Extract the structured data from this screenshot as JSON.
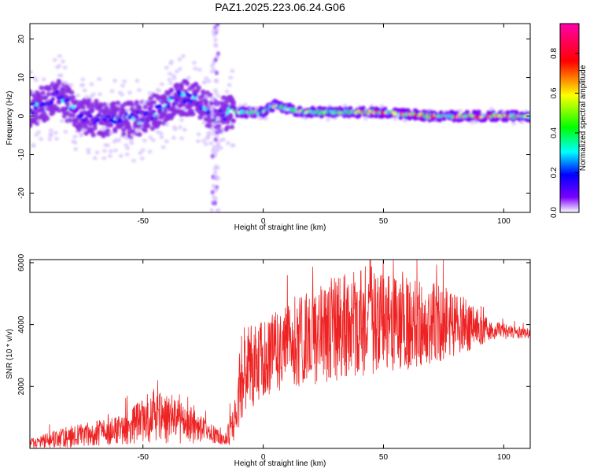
{
  "title": "PAZ1.2025.223.06.24.G06",
  "chart_data": [
    {
      "type": "heatmap",
      "xlabel": "Height of straight line (km)",
      "ylabel": "Frequency (Hz)",
      "xlim": [
        -97,
        111
      ],
      "ylim": [
        -25,
        24
      ],
      "xticks": [
        "-50",
        "0",
        "50",
        "100"
      ],
      "yticks": [
        "-20",
        "-10",
        "0",
        "10",
        "20"
      ],
      "ridge": [
        {
          "x": -95,
          "f": 2
        },
        {
          "x": -85,
          "f": 5
        },
        {
          "x": -75,
          "f": 0
        },
        {
          "x": -65,
          "f": -1
        },
        {
          "x": -55,
          "f": -1
        },
        {
          "x": -45,
          "f": 1
        },
        {
          "x": -35,
          "f": 5
        },
        {
          "x": -28,
          "f": 4
        },
        {
          "x": -20,
          "f": 0
        },
        {
          "x": -12,
          "f": 1
        },
        {
          "x": -5,
          "f": 1
        },
        {
          "x": 0,
          "f": 1
        },
        {
          "x": 5,
          "f": 3
        },
        {
          "x": 15,
          "f": 1
        },
        {
          "x": 30,
          "f": 1
        },
        {
          "x": 50,
          "f": 1
        },
        {
          "x": 70,
          "f": 0
        },
        {
          "x": 90,
          "f": 0
        },
        {
          "x": 111,
          "f": 0
        }
      ],
      "colorbar": {
        "label": "Normalized spectral amplitude",
        "range": [
          0,
          0.95
        ],
        "ticks": [
          "0.0",
          "0.2",
          "0.4",
          "0.6",
          "0.8"
        ],
        "colors": [
          "#ffffff",
          "#7b00ff",
          "#0000ff",
          "#00ffff",
          "#00ff00",
          "#ffff00",
          "#ff0000",
          "#ff00aa"
        ]
      }
    },
    {
      "type": "line",
      "xlabel": "Height of straight line (km)",
      "ylabel": "SNR (10 * v/v)",
      "xlim": [
        -97,
        111
      ],
      "ylim": [
        0,
        6100
      ],
      "xticks": [
        "-50",
        "0",
        "50",
        "100"
      ],
      "yticks": [
        "2000",
        "4000",
        "6000"
      ],
      "series": [
        {
          "color": "#ee2222",
          "envelope": [
            {
              "x": -97,
              "base": 100,
              "amp": 150
            },
            {
              "x": -80,
              "base": 250,
              "amp": 350
            },
            {
              "x": -60,
              "base": 400,
              "amp": 450
            },
            {
              "x": -45,
              "base": 700,
              "amp": 900
            },
            {
              "x": -30,
              "base": 500,
              "amp": 600
            },
            {
              "x": -20,
              "base": 300,
              "amp": 300
            },
            {
              "x": -16,
              "base": 200,
              "amp": 150
            },
            {
              "x": -12,
              "base": 500,
              "amp": 700
            },
            {
              "x": -8,
              "base": 1800,
              "amp": 1500
            },
            {
              "x": 0,
              "base": 2400,
              "amp": 1200
            },
            {
              "x": 10,
              "base": 2800,
              "amp": 1400
            },
            {
              "x": 20,
              "base": 3000,
              "amp": 1600
            },
            {
              "x": 40,
              "base": 3400,
              "amp": 1800
            },
            {
              "x": 60,
              "base": 3500,
              "amp": 1600
            },
            {
              "x": 80,
              "base": 3600,
              "amp": 1100
            },
            {
              "x": 95,
              "base": 3700,
              "amp": 300
            },
            {
              "x": 111,
              "base": 3650,
              "amp": 150
            }
          ]
        }
      ]
    }
  ]
}
